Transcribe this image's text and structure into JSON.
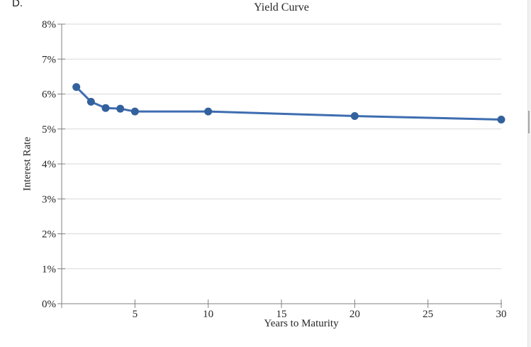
{
  "page": {
    "panel_label": "D."
  },
  "chart_data": {
    "type": "line",
    "title": "Yield Curve",
    "xlabel": "Years to Maturity",
    "ylabel": "Interest Rate",
    "series": [
      {
        "name": "Yield Curve",
        "x": [
          1,
          2,
          3,
          4,
          5,
          10,
          20,
          30
        ],
        "y": [
          6.2,
          5.78,
          5.6,
          5.58,
          5.5,
          5.5,
          5.37,
          5.27
        ]
      }
    ],
    "xlim": [
      0,
      30
    ],
    "ylim": [
      0,
      8
    ],
    "x_ticks": [
      5,
      10,
      15,
      20,
      25,
      30
    ],
    "x_tick_labels": [
      "5",
      "10",
      "15",
      "20",
      "25",
      "30"
    ],
    "y_ticks": [
      0,
      1,
      2,
      3,
      4,
      5,
      6,
      7,
      8
    ],
    "y_tick_labels": [
      "0%",
      "1%",
      "2%",
      "3%",
      "4%",
      "5%",
      "6%",
      "7%",
      "8%"
    ],
    "grid": "horizontal",
    "legend": "none",
    "colors": {
      "line": "#3E6DB1",
      "marker": "#33619E",
      "grid": "#D9D9D9",
      "axis": "#808080",
      "text": "#262626"
    }
  }
}
